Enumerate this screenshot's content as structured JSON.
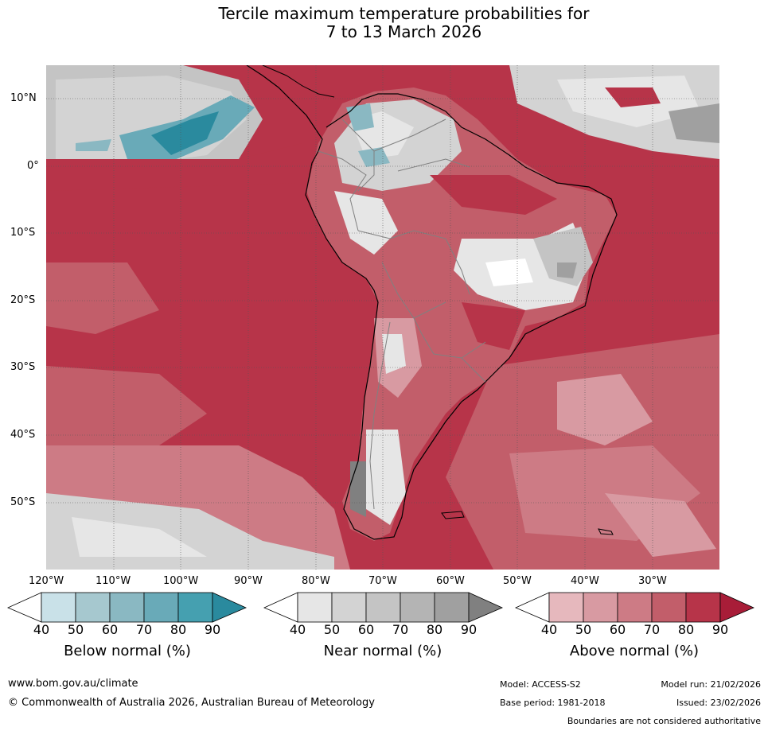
{
  "title": {
    "line1": "Tercile maximum temperature probabilities for",
    "line2": "7 to 13 March 2026"
  },
  "map": {
    "lat_labels": [
      "10°N",
      "0°",
      "10°S",
      "20°S",
      "30°S",
      "40°S",
      "50°S"
    ],
    "lon_labels": [
      "120°W",
      "110°W",
      "100°W",
      "90°W",
      "80°W",
      "70°W",
      "60°W",
      "50°W",
      "40°W",
      "30°W"
    ],
    "extent": {
      "lon_min": -122,
      "lon_max": -22,
      "lat_min": -60,
      "lat_max": 15
    }
  },
  "legends": [
    {
      "title": "Below normal (%)",
      "ticks": [
        "40",
        "50",
        "60",
        "70",
        "80",
        "90"
      ],
      "colors": [
        "#ffffff",
        "#c9e1e8",
        "#a6c8cf",
        "#8ab8c2",
        "#69aab8",
        "#45a0b0",
        "#2a8a9e"
      ]
    },
    {
      "title": "Near normal (%)",
      "ticks": [
        "40",
        "50",
        "60",
        "70",
        "80",
        "90"
      ],
      "colors": [
        "#ffffff",
        "#e6e6e6",
        "#d3d3d3",
        "#c4c4c4",
        "#b4b4b4",
        "#a0a0a0",
        "#808080"
      ]
    },
    {
      "title": "Above normal (%)",
      "ticks": [
        "40",
        "50",
        "60",
        "70",
        "80",
        "90"
      ],
      "colors": [
        "#ffffff",
        "#e6b8bd",
        "#d89aa2",
        "#cd7b85",
        "#c25e6a",
        "#b73449",
        "#a81d38"
      ]
    }
  ],
  "footer": {
    "url": "www.bom.gov.au/climate",
    "copyright": "© Commonwealth of Australia 2026, Australian Bureau of Meteorology",
    "model": "Model: ACCESS-S2",
    "model_run": "Model run: 21/02/2026",
    "base_period": "Base period: 1981-2018",
    "issued": "Issued: 23/02/2026",
    "disclaimer": "Boundaries are not considered authoritative"
  }
}
